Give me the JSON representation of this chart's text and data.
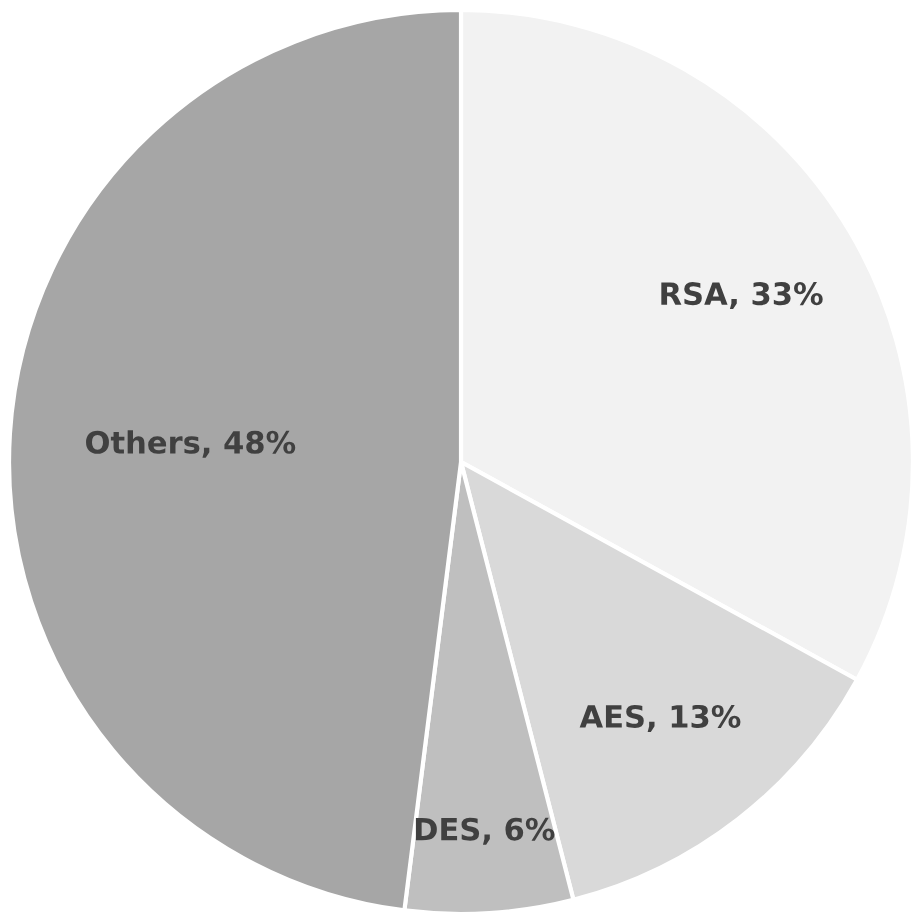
{
  "chart_data": {
    "type": "pie",
    "categories": [
      "RSA",
      "AES",
      "DES",
      "Others"
    ],
    "values": [
      33,
      13,
      6,
      48
    ],
    "value_labels": [
      "33%",
      "13%",
      "6%",
      "48%"
    ],
    "colors": [
      "#f2f2f2",
      "#d9d9d9",
      "#bfbfbf",
      "#a6a6a6"
    ]
  }
}
